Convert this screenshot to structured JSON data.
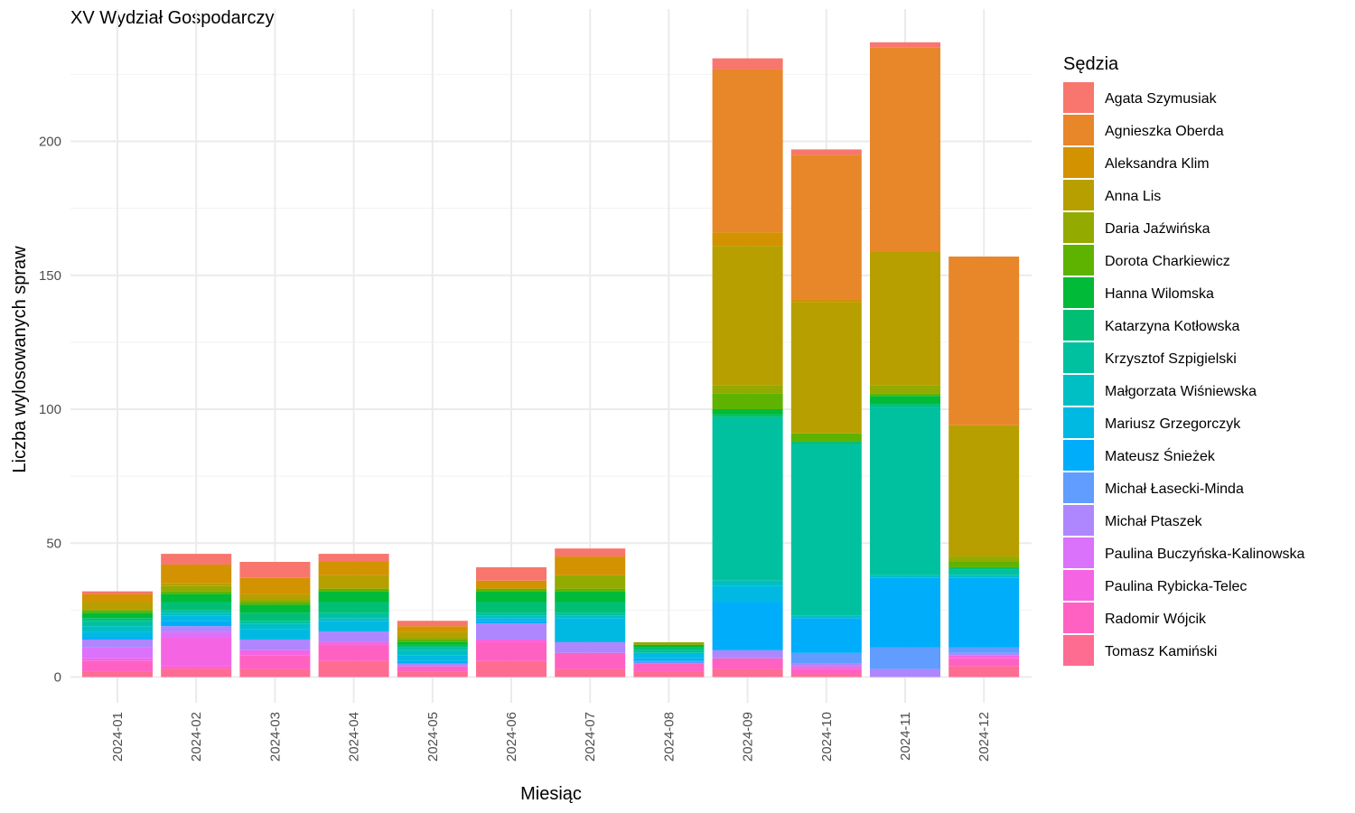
{
  "chart_data": {
    "type": "bar",
    "stacked": true,
    "title": "XV Wydział Gospodarczy",
    "xlabel": "Miesiąc",
    "ylabel": "Liczba wylosowanych spraw",
    "ylim": [
      0,
      240
    ],
    "yticks": [
      0,
      50,
      100,
      150,
      200
    ],
    "grid": true,
    "legend_title": "Sędzia",
    "legend_position": "right",
    "categories": [
      "2024-01",
      "2024-02",
      "2024-03",
      "2024-04",
      "2024-05",
      "2024-06",
      "2024-07",
      "2024-08",
      "2024-09",
      "2024-10",
      "2024-11",
      "2024-12"
    ],
    "series": [
      {
        "name": "Agata Szymusiak",
        "color": "#F8766D",
        "values": [
          1,
          4,
          6,
          3,
          2,
          5,
          3,
          0,
          4,
          2,
          2,
          0
        ]
      },
      {
        "name": "Agnieszka Oberda",
        "color": "#E8862A",
        "values": [
          0,
          0,
          0,
          0,
          0,
          0,
          0,
          0,
          61,
          54,
          76,
          63
        ]
      },
      {
        "name": "Aleksandra Klim",
        "color": "#D39200",
        "values": [
          3,
          7,
          6,
          5,
          2,
          3,
          7,
          0,
          5,
          1,
          0,
          0
        ]
      },
      {
        "name": "Anna Lis",
        "color": "#B79F00",
        "values": [
          3,
          1,
          2,
          5,
          2,
          0,
          0,
          0,
          52,
          49,
          50,
          49
        ]
      },
      {
        "name": "Daria Jaźwińska",
        "color": "#93AA00",
        "values": [
          0,
          2,
          1,
          0,
          1,
          0,
          5,
          1,
          3,
          0,
          3,
          2
        ]
      },
      {
        "name": "Dorota Charkiewicz",
        "color": "#5EB300",
        "values": [
          1,
          1,
          1,
          1,
          1,
          1,
          1,
          0,
          6,
          3,
          1,
          2
        ]
      },
      {
        "name": "Hanna Wilomska",
        "color": "#00BA38",
        "values": [
          2,
          3,
          3,
          4,
          1,
          4,
          4,
          1,
          2,
          0,
          3,
          0
        ]
      },
      {
        "name": "Katarzyna Kotłowska",
        "color": "#00BF74",
        "values": [
          1,
          3,
          3,
          4,
          1,
          4,
          4,
          1,
          1,
          1,
          1,
          1
        ]
      },
      {
        "name": "Krzysztof Szpigielski",
        "color": "#00C19F",
        "values": [
          2,
          1,
          1,
          2,
          1,
          1,
          1,
          1,
          61,
          64,
          63,
          2
        ]
      },
      {
        "name": "Małgorzata Wiśniewska",
        "color": "#00BFC4",
        "values": [
          2,
          1,
          2,
          1,
          2,
          1,
          1,
          0,
          2,
          1,
          1,
          1
        ]
      },
      {
        "name": "Mariusz Grzegorczyk",
        "color": "#00B9E3",
        "values": [
          2,
          2,
          4,
          4,
          2,
          1,
          9,
          2,
          6,
          0,
          0,
          0
        ]
      },
      {
        "name": "Mateusz Śnieżek",
        "color": "#00ADFA",
        "values": [
          1,
          2,
          0,
          0,
          1,
          1,
          0,
          1,
          18,
          13,
          26,
          26
        ]
      },
      {
        "name": "Michał Łasecki-Minda",
        "color": "#619CFF",
        "values": [
          0,
          0,
          0,
          0,
          0,
          0,
          0,
          1,
          0,
          4,
          8,
          2
        ]
      },
      {
        "name": "Michał Ptaszek",
        "color": "#AE87FF",
        "values": [
          3,
          2,
          4,
          4,
          1,
          6,
          4,
          0,
          3,
          1,
          3,
          1
        ]
      },
      {
        "name": "Paulina Buczyńska-Kalinowska",
        "color": "#DB72FB",
        "values": [
          4,
          2,
          0,
          0,
          0,
          0,
          0,
          0,
          0,
          0,
          0,
          0
        ]
      },
      {
        "name": "Paulina Rybicka-Telec",
        "color": "#F564E3",
        "values": [
          1,
          11,
          2,
          1,
          0,
          1,
          0,
          0,
          0,
          1,
          0,
          1
        ]
      },
      {
        "name": "Radomir Wójcik",
        "color": "#FF61C3",
        "values": [
          4,
          1,
          5,
          6,
          2,
          7,
          6,
          3,
          4,
          2,
          0,
          3
        ]
      },
      {
        "name": "Tomasz Kamiński",
        "color": "#FF6C91",
        "values": [
          2,
          3,
          3,
          6,
          2,
          6,
          3,
          2,
          3,
          1,
          0,
          4
        ]
      }
    ]
  }
}
